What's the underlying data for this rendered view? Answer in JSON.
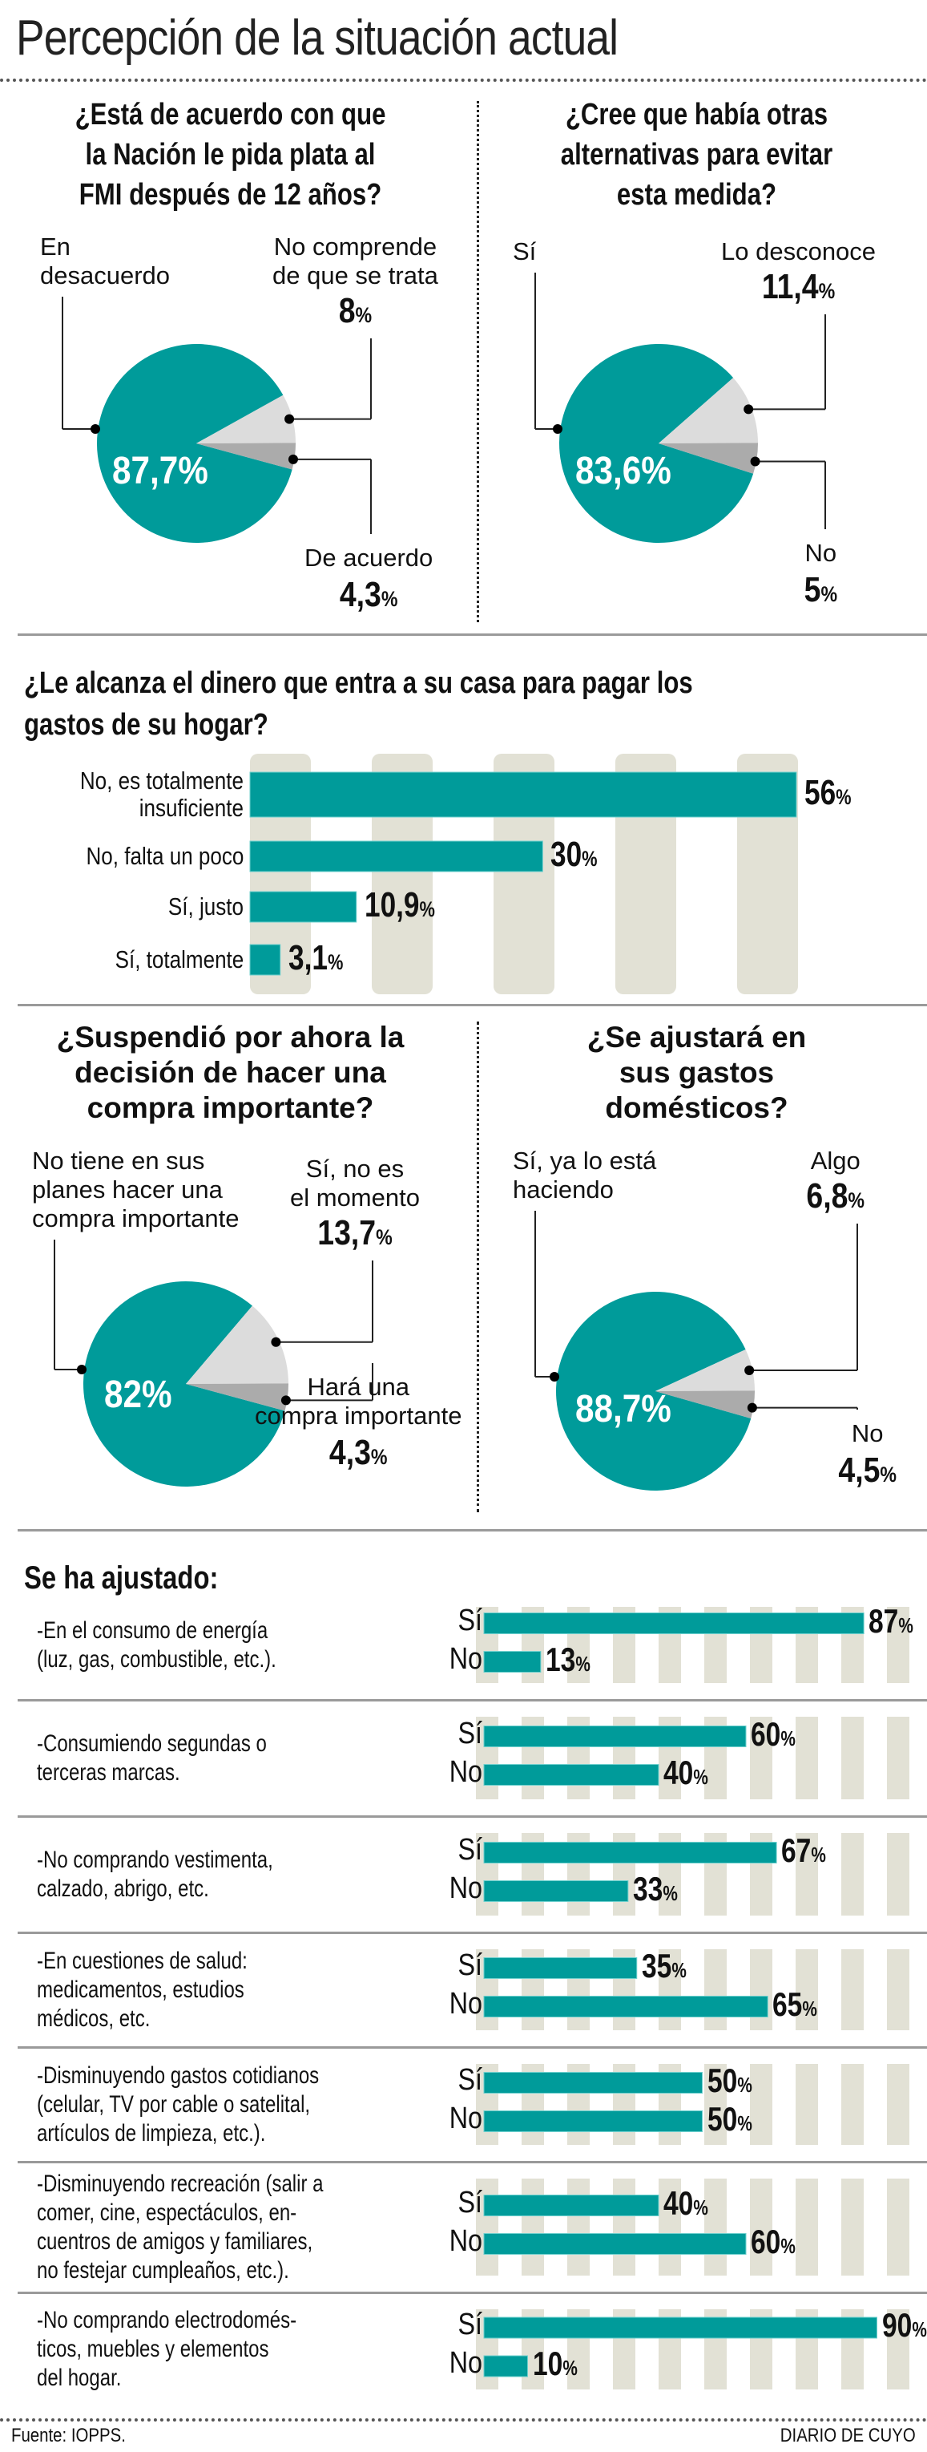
{
  "title": "Percepción de la situación actual",
  "colors": {
    "teal": "#009b9a",
    "light_gray": "#dcdcdc",
    "dark_gray": "#ababab",
    "stripe": "#e2e1d5"
  },
  "chart_data": [
    {
      "type": "pie",
      "title": "¿Está de acuerdo con que la Nación le pida plata al FMI después de 12 años?",
      "title_lines": [
        "¿Está de acuerdo con que",
        "la Nación le pida plata al",
        "FMI después de 12 años?"
      ],
      "slices": [
        {
          "label": "En desacuerdo",
          "label_lines": [
            "En",
            "desacuerdo"
          ],
          "value": 87.7,
          "display": "87,7",
          "color": "#009b9a"
        },
        {
          "label": "No comprende de que se trata",
          "label_lines": [
            "No comprende",
            "de que se trata"
          ],
          "value": 8,
          "display": "8",
          "color": "#dcdcdc"
        },
        {
          "label": "De acuerdo",
          "label_lines": [
            "De acuerdo"
          ],
          "value": 4.3,
          "display": "4,3",
          "color": "#ababab"
        }
      ]
    },
    {
      "type": "pie",
      "title": "¿Cree que había otras alternativas para evitar esta medida?",
      "title_lines": [
        "¿Cree que había otras",
        "alternativas para evitar",
        "esta medida?"
      ],
      "slices": [
        {
          "label": "Sí",
          "label_lines": [
            "Sí"
          ],
          "value": 83.6,
          "display": "83,6",
          "color": "#009b9a"
        },
        {
          "label": "Lo desconoce",
          "label_lines": [
            "Lo desconoce"
          ],
          "value": 11.4,
          "display": "11,4",
          "color": "#dcdcdc"
        },
        {
          "label": "No",
          "label_lines": [
            "No"
          ],
          "value": 5,
          "display": "5",
          "color": "#ababab"
        }
      ]
    },
    {
      "type": "bar",
      "orientation": "horizontal",
      "title": "¿Le alcanza el dinero que entra a su casa para pagar los gastos de su hogar?",
      "title_lines": [
        "¿Le alcanza el dinero que entra a su casa para pagar los",
        "gastos de su hogar?"
      ],
      "categories": [
        "No, es totalmente insuficiente",
        "No, falta un poco",
        "Sí, justo",
        "Sí, totalmente"
      ],
      "category_lines": [
        [
          "No, es totalmente",
          "insuficiente"
        ],
        [
          "No, falta un poco"
        ],
        [
          "Sí, justo"
        ],
        [
          "Sí, totalmente"
        ]
      ],
      "values": [
        56,
        30,
        10.9,
        3.1
      ],
      "display": [
        "56",
        "30",
        "10,9",
        "3,1"
      ],
      "unit": "%"
    },
    {
      "type": "pie",
      "title": "¿Suspendió por ahora la decisión de hacer una compra importante?",
      "title_lines": [
        "¿Suspendió por ahora la",
        "decisión de hacer una",
        "compra importante?"
      ],
      "slices": [
        {
          "label": "No tiene en sus planes hacer una compra importante",
          "label_lines": [
            "No tiene en sus",
            "planes hacer una",
            "compra importante"
          ],
          "value": 82,
          "display": "82",
          "color": "#009b9a"
        },
        {
          "label": "Sí, no es el momento",
          "label_lines": [
            "Sí, no es",
            "el momento"
          ],
          "value": 13.7,
          "display": "13,7",
          "color": "#dcdcdc"
        },
        {
          "label": "Hará una compra importante",
          "label_lines": [
            "Hará una",
            "compra importante"
          ],
          "value": 4.3,
          "display": "4,3",
          "color": "#ababab"
        }
      ]
    },
    {
      "type": "pie",
      "title": "¿Se ajustará en sus gastos domésticos?",
      "title_lines": [
        "¿Se ajustará en",
        "sus gastos",
        "domésticos?"
      ],
      "slices": [
        {
          "label": "Sí, ya lo está haciendo",
          "label_lines": [
            "Sí, ya lo está",
            "haciendo"
          ],
          "value": 88.7,
          "display": "88,7",
          "color": "#009b9a"
        },
        {
          "label": "Algo",
          "label_lines": [
            "Algo"
          ],
          "value": 6.8,
          "display": "6,8",
          "color": "#dcdcdc"
        },
        {
          "label": "No",
          "label_lines": [
            "No"
          ],
          "value": 4.5,
          "display": "4,5",
          "color": "#ababab"
        }
      ]
    },
    {
      "type": "bar",
      "orientation": "horizontal",
      "title": "Se ha ajustado:",
      "series_names": [
        "Sí",
        "No"
      ],
      "unit": "%",
      "groups": [
        {
          "label_lines": [
            "-En el consumo de energía",
            "(luz, gas, combustible, etc.)."
          ],
          "values": [
            87,
            13
          ]
        },
        {
          "label_lines": [
            "-Consumiendo segundas o",
            "terceras marcas."
          ],
          "values": [
            60,
            40
          ]
        },
        {
          "label_lines": [
            "-No comprando vestimenta,",
            "calzado, abrigo, etc."
          ],
          "values": [
            67,
            33
          ]
        },
        {
          "label_lines": [
            "-En cuestiones de salud:",
            "medicamentos, estudios",
            "médicos, etc."
          ],
          "values": [
            35,
            65
          ]
        },
        {
          "label_lines": [
            "-Disminuyendo gastos cotidianos",
            "(celular, TV por cable o satelital,",
            "artículos de limpieza, etc.)."
          ],
          "values": [
            50,
            50
          ]
        },
        {
          "label_lines": [
            "-Disminuyendo recreación (salir a",
            "comer, cine, espectáculos, en-",
            "cuentros de amigos y familiares,",
            "no festejar cumpleaños, etc.)."
          ],
          "values": [
            40,
            60
          ]
        },
        {
          "label_lines": [
            "-No comprando electrodomés-",
            "ticos, muebles y elementos",
            "del hogar."
          ],
          "values": [
            90,
            10
          ]
        }
      ]
    }
  ],
  "footer": {
    "source": "Fuente: IOPPS.",
    "brand": "DIARIO DE CUYO"
  }
}
